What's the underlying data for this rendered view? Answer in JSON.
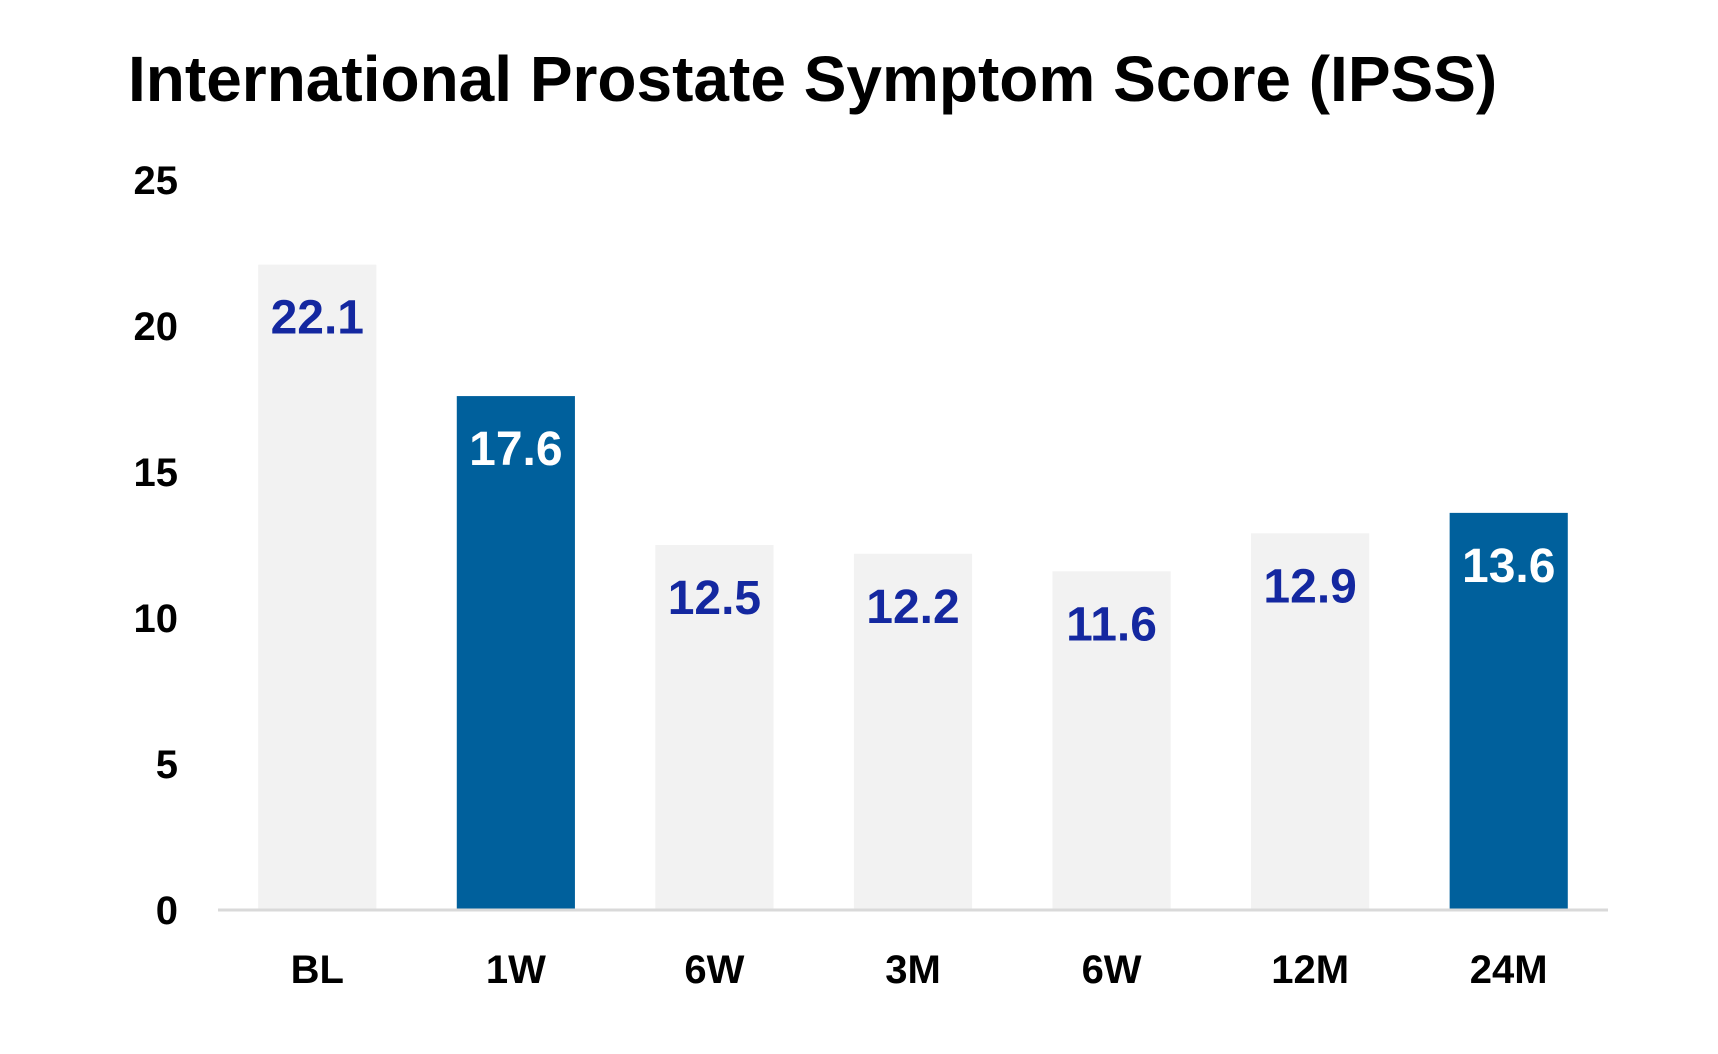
{
  "chart_data": {
    "type": "bar",
    "title": "International Prostate Symptom Score (IPSS)",
    "xlabel": "",
    "ylabel": "",
    "categories": [
      "BL",
      "1W",
      "6W",
      "3M",
      "6W",
      "12M",
      "24M"
    ],
    "values": [
      22.1,
      17.6,
      12.5,
      12.2,
      11.6,
      12.9,
      13.6
    ],
    "data_labels": [
      "22.1",
      "17.6",
      "12.5",
      "12.2",
      "11.6",
      "12.9",
      "13.6"
    ],
    "highlighted": [
      false,
      true,
      false,
      false,
      false,
      false,
      true
    ],
    "ylim": [
      0,
      25
    ],
    "yticks": [
      0,
      5,
      10,
      15,
      20,
      25
    ],
    "grid": false,
    "legend": "none",
    "colors": {
      "bar_default": "#f2f2f2",
      "bar_highlight": "#00609c",
      "label_default": "#1428a0",
      "label_highlight": "#ffffff",
      "axis_line": "#d9d9d9",
      "text": "#000000"
    }
  }
}
